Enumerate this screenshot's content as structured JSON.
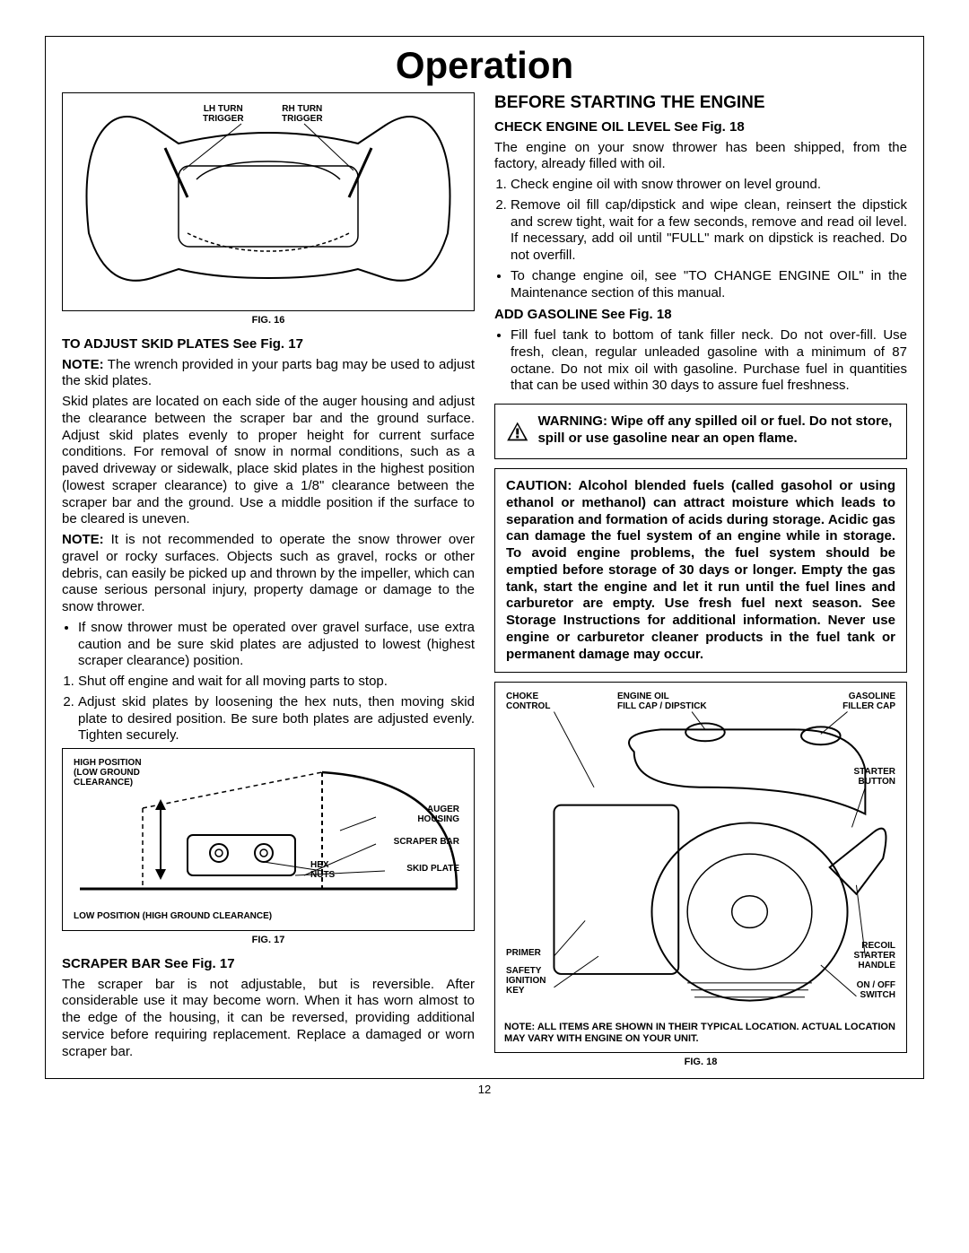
{
  "title": "Operation",
  "page_number": "12",
  "left": {
    "fig16": {
      "caption": "FIG. 16",
      "labels": {
        "lh": "LH TURN\nTRIGGER",
        "rh": "RH TURN\nTRIGGER"
      }
    },
    "skid_head": "TO ADJUST SKID PLATES See Fig. 17",
    "skid_note1": "NOTE: The wrench provided in your parts bag may be used to adjust the skid plates.",
    "skid_p1": "Skid plates are located on each side of the auger housing and adjust the clearance between the scraper bar and the ground surface. Adjust skid plates evenly to proper height for current surface conditions. For removal of snow in normal conditions, such as a paved driveway or sidewalk, place skid plates in the highest position (lowest scraper clearance) to give a 1/8\" clearance between the scraper bar and the ground.  Use a middle position if the surface to be cleared is uneven.",
    "skid_note2": "NOTE: It is not recommended to operate the snow thrower over gravel or rocky surfaces. Objects such as gravel, rocks or other debris, can easily be picked up and thrown by the impeller, which can cause serious personal injury, property damage or damage to the snow thrower.",
    "skid_bullet": "If snow thrower must be operated over gravel surface, use extra caution and be sure skid plates are adjusted to lowest (highest scraper clearance) position.",
    "skid_step1": "Shut off engine and wait for all moving parts to stop.",
    "skid_step2": "Adjust skid plates by loosening the hex nuts, then moving skid plate to desired position. Be sure both plates are adjusted evenly. Tighten securely.",
    "fig17": {
      "caption": "FIG. 17",
      "high_pos": "HIGH POSITION\n(LOW GROUND\nCLEARANCE)",
      "auger": "AUGER\nHOUSING",
      "scraper": "SCRAPER BAR",
      "hex": "HEX\nNUTS",
      "skid": "SKID PLATE",
      "low_pos": "LOW POSITION (HIGH GROUND CLEARANCE)"
    },
    "scraper_head": "SCRAPER BAR See Fig. 17",
    "scraper_p": "The scraper bar is not adjustable, but is reversible.  After considerable use it may become worn. When it has worn almost to the edge of the housing, it can be reversed, providing additional service before requiring replacement.  Replace a damaged or worn scraper bar."
  },
  "right": {
    "before_head": "BEFORE STARTING THE ENGINE",
    "check_head": "CHECK ENGINE OIL LEVEL See Fig. 18",
    "check_p": "The engine on your snow thrower has been shipped, from the factory, already filled with oil.",
    "check_step1": "Check engine oil with snow thrower on level ground.",
    "check_step2": "Remove oil fill cap/dipstick and wipe clean, reinsert the dipstick and screw tight, wait for a few seconds, remove and read oil level. If necessary, add oil until \"FULL\" mark on dipstick is reached. Do not overfill.",
    "check_bullet": "To change engine oil, see \"TO CHANGE ENGINE OIL\" in the Maintenance section of this manual.",
    "gas_head": "ADD GASOLINE See Fig. 18",
    "gas_bullet": "Fill fuel tank to bottom of tank filler neck.  Do not over-fill.  Use fresh, clean, regular unleaded gasoline with a minimum of 87 octane.  Do not mix oil with gasoline.  Purchase fuel in quantities that can be used within 30 days to assure fuel freshness.",
    "warning": "WARNING:  Wipe off any spilled oil or fuel.  Do not store, spill or use gasoline near an open flame.",
    "caution": "CAUTION: Alcohol blended fuels (called gasohol or using ethanol or methanol) can attract moisture which leads to separation and formation of acids during storage.  Acidic gas can damage the fuel system of an engine while in storage.  To avoid engine problems, the fuel system should be emptied before storage of 30 days or longer.  Empty the gas tank, start the engine and let it run until the fuel lines and carburetor are empty.  Use fresh fuel next season.  See Storage Instructions for additional information.  Never use engine or carburetor cleaner products in the fuel tank or permanent damage may occur.",
    "fig18": {
      "caption": "FIG. 18",
      "choke": "CHOKE\nCONTROL",
      "oil": "ENGINE OIL\nFILL CAP / DIPSTICK",
      "gas": "GASOLINE\nFILLER CAP",
      "starter_btn": "STARTER\nBUTTON",
      "primer": "PRIMER",
      "key": "SAFETY\nIGNITION\nKEY",
      "recoil": "RECOIL\nSTARTER\nHANDLE",
      "switch": "ON / OFF\nSWITCH",
      "note": "NOTE:  ALL ITEMS ARE SHOWN IN THEIR TYPICAL LOCATION.  ACTUAL LOCATION MAY VARY WITH ENGINE ON YOUR UNIT."
    }
  }
}
